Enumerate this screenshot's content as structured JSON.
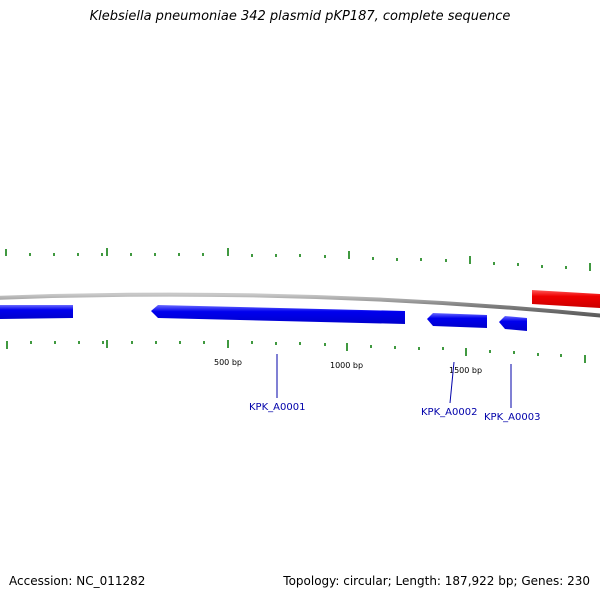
{
  "title": "Klebsiella pneumoniae 342 plasmid pKP187, complete sequence",
  "scale_labels": [
    "500 bp",
    "1000 bp",
    "1500 bp"
  ],
  "genes": [
    {
      "name": "KPK_A0001",
      "strand": "reverse"
    },
    {
      "name": "KPK_A0002",
      "strand": "reverse"
    },
    {
      "name": "KPK_A0003",
      "strand": "reverse"
    }
  ],
  "footer": {
    "accession": "Accession: NC_011282",
    "summary": "Topology: circular; Length: 187,922 bp; Genes: 230"
  },
  "colors": {
    "backbone": "#808080",
    "reverse_gene": "#0000ee",
    "forward_gene": "#ee0000",
    "tick": "#007700",
    "label": "#0000aa"
  }
}
